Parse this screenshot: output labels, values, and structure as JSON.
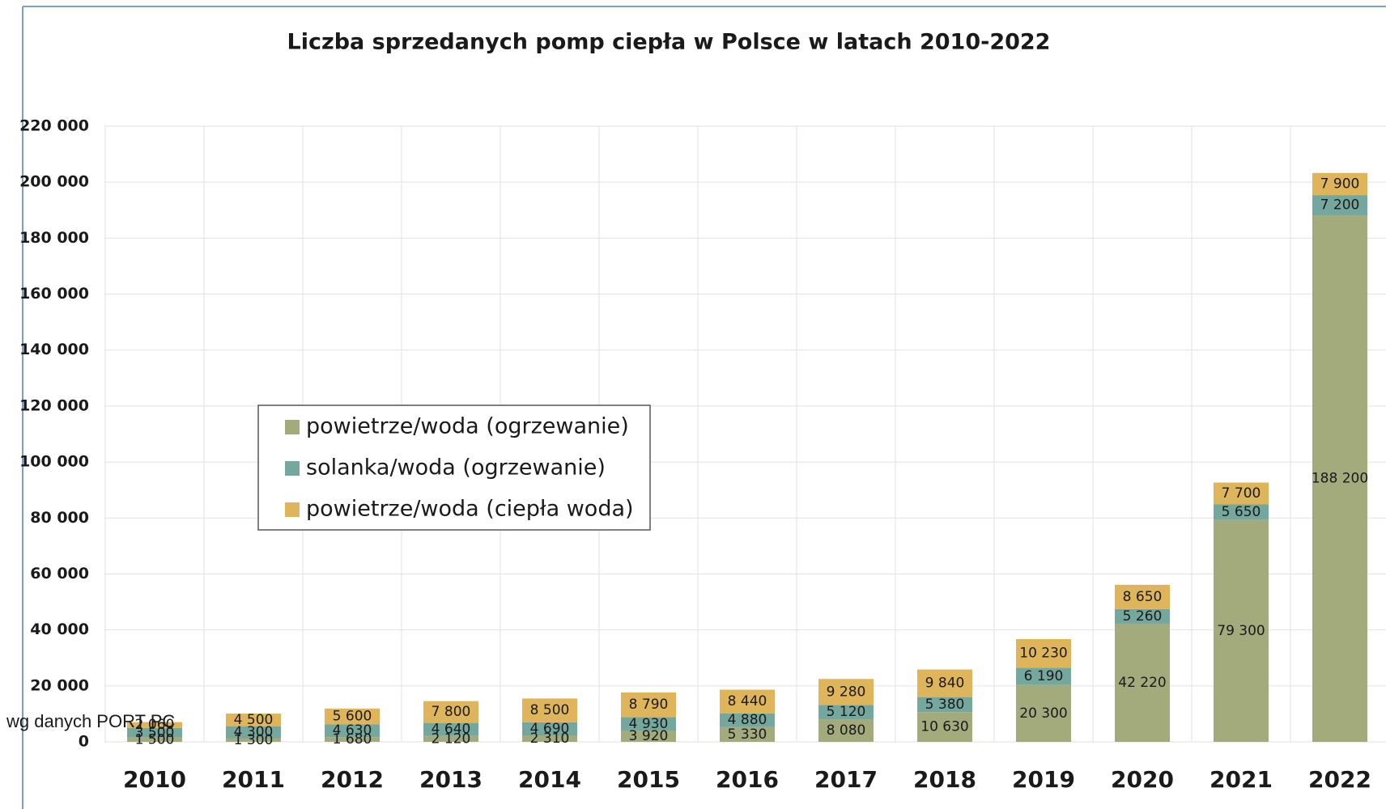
{
  "chart_data": {
    "type": "stacked_bar",
    "title": "Liczba sprzedanych pomp ciepła w Polsce w latach 2010-2022",
    "annotation": "wg danych PORT PC",
    "categories": [
      "2010",
      "2011",
      "2012",
      "2013",
      "2014",
      "2015",
      "2016",
      "2017",
      "2018",
      "2019",
      "2020",
      "2021",
      "2022"
    ],
    "series": [
      {
        "name": "powietrze/woda (ogrzewanie)",
        "color": "#a3ab7d",
        "values": [
          1500,
          1300,
          1680,
          2120,
          2310,
          3920,
          5330,
          8080,
          10630,
          20300,
          42220,
          79300,
          188200
        ],
        "value_labels": [
          "1 500",
          "1 300",
          "1 680",
          "2 120",
          "2 310",
          "3 920",
          "5 330",
          "8 080",
          "10 630",
          "20 300",
          "42 220",
          "79 300",
          "188 200"
        ]
      },
      {
        "name": "solanka/woda (ogrzewanie)",
        "color": "#74a89f",
        "values": [
          3500,
          4300,
          4630,
          4640,
          4690,
          4930,
          4880,
          5120,
          5380,
          6190,
          5260,
          5650,
          7200
        ],
        "value_labels": [
          "3 500",
          "4 300",
          "4 630",
          "4 640",
          "4 690",
          "4 930",
          "4 880",
          "5 120",
          "5 380",
          "6 190",
          "5 260",
          "5 650",
          "7 200"
        ]
      },
      {
        "name": "powietrze/woda (ciepła woda)",
        "color": "#dfb55c",
        "values": [
          2060,
          4500,
          5600,
          7800,
          8500,
          8790,
          8440,
          9280,
          9840,
          10230,
          8650,
          7700,
          7900
        ],
        "value_labels": [
          "2 060",
          "4 500",
          "5 600",
          "7 800",
          "8 500",
          "8 790",
          "8 440",
          "9 280",
          "9 840",
          "10 230",
          "8 650",
          "7 700",
          "7 900"
        ]
      }
    ],
    "ylim": [
      0,
      220000
    ],
    "yticks": [
      0,
      {
        "value": 20000,
        "label": "20 000"
      },
      {
        "value": 40000,
        "label": "40 000"
      },
      {
        "value": 60000,
        "label": "60 000"
      },
      {
        "value": 80000,
        "label": "80 000"
      },
      {
        "value": 100000,
        "label": "100 000"
      },
      {
        "value": 120000,
        "label": "120 000"
      },
      {
        "value": 140000,
        "label": "140 000"
      },
      {
        "value": 160000,
        "label": "160 000"
      },
      {
        "value": 180000,
        "label": "180 000"
      },
      {
        "value": 200000,
        "label": "200 000"
      },
      {
        "value": 220000,
        "label": "220 000"
      }
    ],
    "grid": true
  }
}
